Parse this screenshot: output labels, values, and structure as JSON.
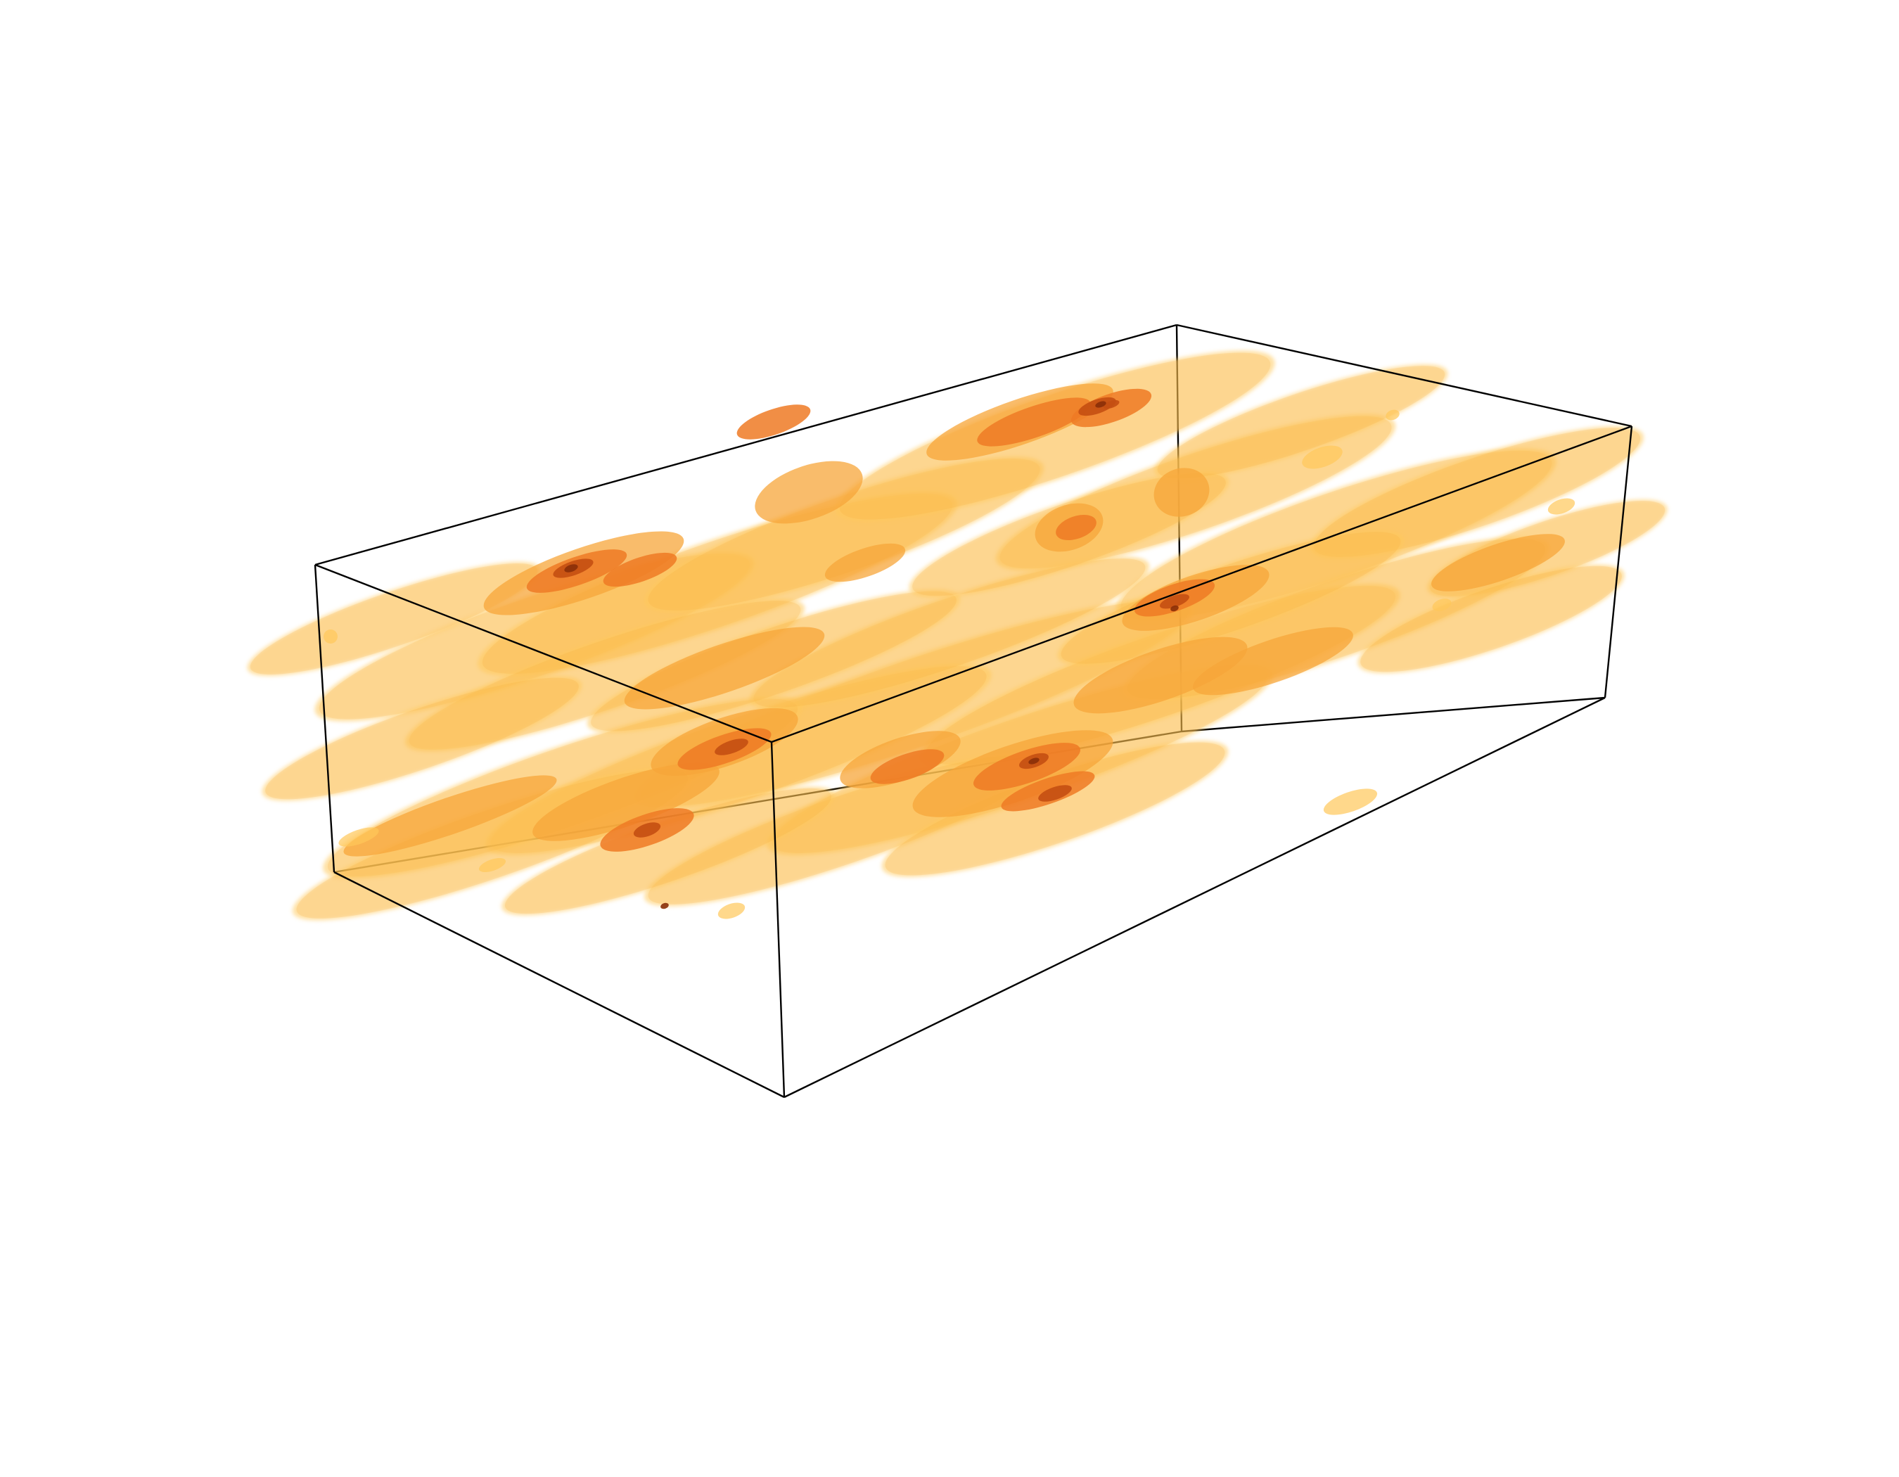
{
  "scene": {
    "background": "#ffffff",
    "box_edge_color": "#000000",
    "isosurface_colors": {
      "outer": "#ffc85a",
      "outer_edge": "#f4a43a",
      "middle": "#f7a63a",
      "inner": "#ee7a24",
      "core": "#c44f12",
      "deep": "#8a2f08"
    }
  }
}
